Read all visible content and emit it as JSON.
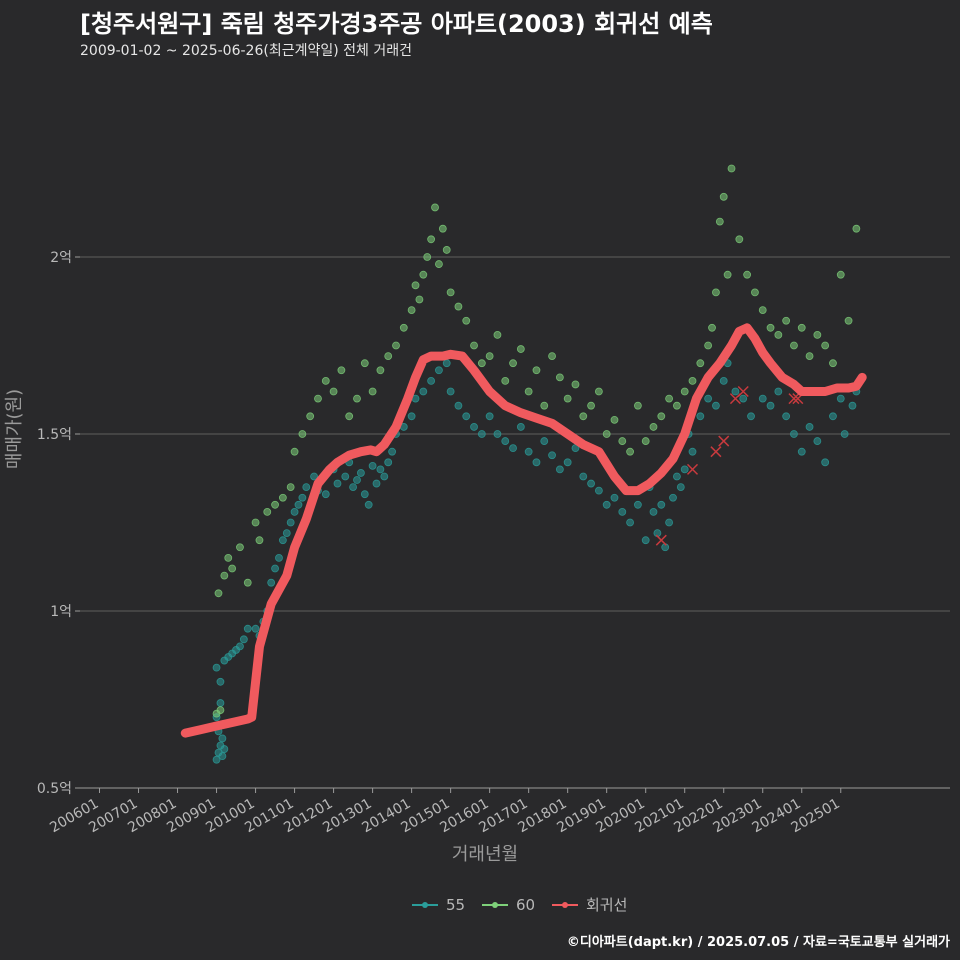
{
  "header": {
    "title": "[청주서원구] 죽림 청주가경3주공 아파트(2003) 회귀선 예측",
    "subtitle": "2009-01-02 ~ 2025-06-26(최근계약일) 전체 거래건"
  },
  "footer": {
    "caption": "©디아파트(dapt.kr) / 2025.07.05 / 자료=국토교통부 실거래가"
  },
  "chart_data": {
    "type": "scatter",
    "title": "[청주서원구] 죽림 청주가경3주공 아파트(2003) 회귀선 예측",
    "xlabel": "거래년월",
    "ylabel": "매매가(원)",
    "xlim": [
      2005.5,
      2027.8
    ],
    "ylim": [
      0.5,
      2.5
    ],
    "grid": true,
    "legend_position": "bottom",
    "y_ticks": [
      {
        "value": 0.5,
        "label": "0.5억"
      },
      {
        "value": 1.0,
        "label": "1억"
      },
      {
        "value": 1.5,
        "label": "1.5억"
      },
      {
        "value": 2.0,
        "label": "2억"
      }
    ],
    "x_ticks": [
      {
        "value": 2006,
        "label": "200601"
      },
      {
        "value": 2007,
        "label": "200701"
      },
      {
        "value": 2008,
        "label": "200801"
      },
      {
        "value": 2009,
        "label": "200901"
      },
      {
        "value": 2010,
        "label": "201001"
      },
      {
        "value": 2011,
        "label": "201101"
      },
      {
        "value": 2012,
        "label": "201201"
      },
      {
        "value": 2013,
        "label": "201301"
      },
      {
        "value": 2014,
        "label": "201401"
      },
      {
        "value": 2015,
        "label": "201501"
      },
      {
        "value": 2016,
        "label": "201601"
      },
      {
        "value": 2017,
        "label": "201701"
      },
      {
        "value": 2018,
        "label": "201801"
      },
      {
        "value": 2019,
        "label": "201901"
      },
      {
        "value": 2020,
        "label": "202001"
      },
      {
        "value": 2021,
        "label": "202101"
      },
      {
        "value": 2022,
        "label": "202201"
      },
      {
        "value": 2023,
        "label": "202301"
      },
      {
        "value": 2024,
        "label": "202401"
      },
      {
        "value": 2025,
        "label": "202501"
      }
    ],
    "legend": [
      {
        "name": "55",
        "color": "#2a9d9a"
      },
      {
        "name": "60",
        "color": "#7ed07a"
      },
      {
        "name": "회귀선",
        "color": "#f05a5e"
      }
    ],
    "series": [
      {
        "name": "55",
        "type": "scatter",
        "color": "#2a9d9a",
        "x": [
          2009.0,
          2009.05,
          2009.1,
          2009.15,
          2009.2,
          2009.0,
          2009.1,
          2009.2,
          2009.0,
          2009.05,
          2009.15,
          2009.2,
          2009.1,
          2009.3,
          2009.4,
          2009.5,
          2009.6,
          2009.7,
          2009.8,
          2010.0,
          2010.1,
          2010.2,
          2010.3,
          2010.4,
          2010.5,
          2010.6,
          2010.7,
          2010.8,
          2010.9,
          2011.0,
          2011.1,
          2011.2,
          2011.3,
          2011.5,
          2011.6,
          2011.8,
          2012.0,
          2012.1,
          2012.3,
          2012.4,
          2012.5,
          2012.6,
          2012.7,
          2012.8,
          2012.9,
          2013.0,
          2013.1,
          2013.2,
          2013.3,
          2013.4,
          2013.5,
          2013.6,
          2013.8,
          2014.0,
          2014.1,
          2014.3,
          2014.5,
          2014.7,
          2014.9,
          2015.0,
          2015.2,
          2015.4,
          2015.6,
          2015.8,
          2016.0,
          2016.2,
          2016.4,
          2016.6,
          2016.8,
          2017.0,
          2017.2,
          2017.4,
          2017.6,
          2017.8,
          2018.0,
          2018.2,
          2018.4,
          2018.6,
          2018.8,
          2019.0,
          2019.2,
          2019.4,
          2019.6,
          2019.8,
          2020.0,
          2020.1,
          2020.2,
          2020.3,
          2020.4,
          2020.5,
          2020.6,
          2020.7,
          2020.8,
          2020.9,
          2021.0,
          2021.1,
          2021.2,
          2021.4,
          2021.6,
          2021.8,
          2022.0,
          2022.1,
          2022.3,
          2022.5,
          2022.7,
          2023.0,
          2023.2,
          2023.4,
          2023.6,
          2023.8,
          2024.0,
          2024.2,
          2024.4,
          2024.6,
          2024.8,
          2025.0,
          2025.1,
          2025.3,
          2025.4
        ],
        "y": [
          0.58,
          0.6,
          0.62,
          0.59,
          0.61,
          0.84,
          0.8,
          0.86,
          0.7,
          0.66,
          0.64,
          0.68,
          0.74,
          0.87,
          0.88,
          0.89,
          0.9,
          0.92,
          0.95,
          0.95,
          0.93,
          0.97,
          1.0,
          1.08,
          1.12,
          1.15,
          1.2,
          1.22,
          1.25,
          1.28,
          1.3,
          1.32,
          1.35,
          1.38,
          1.34,
          1.33,
          1.4,
          1.36,
          1.38,
          1.42,
          1.35,
          1.37,
          1.39,
          1.33,
          1.3,
          1.41,
          1.36,
          1.4,
          1.38,
          1.42,
          1.45,
          1.5,
          1.52,
          1.55,
          1.6,
          1.62,
          1.65,
          1.68,
          1.7,
          1.62,
          1.58,
          1.55,
          1.52,
          1.5,
          1.55,
          1.5,
          1.48,
          1.46,
          1.52,
          1.45,
          1.42,
          1.48,
          1.44,
          1.4,
          1.42,
          1.46,
          1.38,
          1.36,
          1.34,
          1.3,
          1.32,
          1.28,
          1.25,
          1.3,
          1.2,
          1.35,
          1.28,
          1.22,
          1.3,
          1.18,
          1.25,
          1.32,
          1.38,
          1.35,
          1.4,
          1.5,
          1.45,
          1.55,
          1.6,
          1.58,
          1.65,
          1.7,
          1.62,
          1.6,
          1.55,
          1.6,
          1.58,
          1.62,
          1.55,
          1.5,
          1.45,
          1.52,
          1.48,
          1.42,
          1.55,
          1.6,
          1.5,
          1.58,
          1.62
        ]
      },
      {
        "name": "60",
        "type": "scatter",
        "color": "#7ed07a",
        "x": [
          2009.0,
          2009.1,
          2009.05,
          2009.2,
          2009.3,
          2009.4,
          2009.6,
          2009.8,
          2010.0,
          2010.1,
          2010.3,
          2010.5,
          2010.7,
          2010.9,
          2011.0,
          2011.2,
          2011.4,
          2011.6,
          2011.8,
          2012.0,
          2012.2,
          2012.4,
          2012.6,
          2012.8,
          2013.0,
          2013.2,
          2013.4,
          2013.6,
          2013.8,
          2014.0,
          2014.1,
          2014.2,
          2014.3,
          2014.4,
          2014.5,
          2014.6,
          2014.7,
          2014.8,
          2014.9,
          2015.0,
          2015.2,
          2015.4,
          2015.6,
          2015.8,
          2016.0,
          2016.2,
          2016.4,
          2016.6,
          2016.8,
          2017.0,
          2017.2,
          2017.4,
          2017.6,
          2017.8,
          2018.0,
          2018.2,
          2018.4,
          2018.6,
          2018.8,
          2019.0,
          2019.2,
          2019.4,
          2019.6,
          2019.8,
          2020.0,
          2020.2,
          2020.4,
          2020.6,
          2020.8,
          2021.0,
          2021.2,
          2021.4,
          2021.6,
          2021.7,
          2021.8,
          2021.9,
          2022.0,
          2022.1,
          2022.2,
          2022.4,
          2022.6,
          2022.8,
          2023.0,
          2023.2,
          2023.4,
          2023.6,
          2023.8,
          2024.0,
          2024.2,
          2024.4,
          2024.6,
          2024.8,
          2025.0,
          2025.2,
          2025.4
        ],
        "y": [
          0.71,
          0.72,
          1.05,
          1.1,
          1.15,
          1.12,
          1.18,
          1.08,
          1.25,
          1.2,
          1.28,
          1.3,
          1.32,
          1.35,
          1.45,
          1.5,
          1.55,
          1.6,
          1.65,
          1.62,
          1.68,
          1.55,
          1.6,
          1.7,
          1.62,
          1.68,
          1.72,
          1.75,
          1.8,
          1.85,
          1.92,
          1.88,
          1.95,
          2.0,
          2.05,
          2.14,
          1.98,
          2.08,
          2.02,
          1.9,
          1.86,
          1.82,
          1.75,
          1.7,
          1.72,
          1.78,
          1.65,
          1.7,
          1.74,
          1.62,
          1.68,
          1.58,
          1.72,
          1.66,
          1.6,
          1.64,
          1.55,
          1.58,
          1.62,
          1.5,
          1.54,
          1.48,
          1.45,
          1.58,
          1.48,
          1.52,
          1.55,
          1.6,
          1.58,
          1.62,
          1.65,
          1.7,
          1.75,
          1.8,
          1.9,
          2.1,
          2.17,
          1.95,
          2.25,
          2.05,
          1.95,
          1.9,
          1.85,
          1.8,
          1.78,
          1.82,
          1.75,
          1.8,
          1.72,
          1.78,
          1.75,
          1.7,
          1.95,
          1.82,
          2.08
        ]
      },
      {
        "name": "회귀선",
        "type": "line",
        "color": "#f05a5e",
        "x": [
          2008.2,
          2008.6,
          2009.0,
          2009.4,
          2009.8,
          2009.9,
          2010.1,
          2010.4,
          2010.8,
          2011.0,
          2011.3,
          2011.6,
          2011.9,
          2012.1,
          2012.4,
          2012.7,
          2012.95,
          2013.1,
          2013.3,
          2013.6,
          2013.9,
          2014.1,
          2014.3,
          2014.5,
          2014.8,
          2015.0,
          2015.3,
          2015.6,
          2016.0,
          2016.4,
          2016.8,
          2017.2,
          2017.6,
          2018.0,
          2018.4,
          2018.8,
          2019.2,
          2019.5,
          2019.8,
          2020.1,
          2020.4,
          2020.7,
          2021.0,
          2021.3,
          2021.6,
          2021.9,
          2022.2,
          2022.4,
          2022.6,
          2022.8,
          2023.0,
          2023.2,
          2023.5,
          2023.8,
          2024.0,
          2024.3,
          2024.6,
          2024.9,
          2025.2,
          2025.4,
          2025.55
        ],
        "y": [
          0.655,
          0.665,
          0.675,
          0.685,
          0.695,
          0.7,
          0.9,
          1.02,
          1.1,
          1.18,
          1.26,
          1.36,
          1.4,
          1.42,
          1.44,
          1.45,
          1.455,
          1.45,
          1.47,
          1.52,
          1.6,
          1.66,
          1.71,
          1.72,
          1.72,
          1.725,
          1.72,
          1.68,
          1.62,
          1.58,
          1.56,
          1.545,
          1.53,
          1.5,
          1.47,
          1.45,
          1.38,
          1.34,
          1.34,
          1.36,
          1.39,
          1.43,
          1.5,
          1.6,
          1.66,
          1.7,
          1.75,
          1.79,
          1.8,
          1.77,
          1.73,
          1.7,
          1.66,
          1.64,
          1.62,
          1.62,
          1.62,
          1.63,
          1.63,
          1.635,
          1.66
        ]
      }
    ],
    "outliers": {
      "color": "#c83a3e",
      "x": [
        2020.4,
        2021.2,
        2021.8,
        2022.0,
        2022.3,
        2022.5,
        2023.8,
        2023.9
      ],
      "y": [
        1.2,
        1.4,
        1.45,
        1.48,
        1.6,
        1.62,
        1.6,
        1.6
      ]
    }
  }
}
